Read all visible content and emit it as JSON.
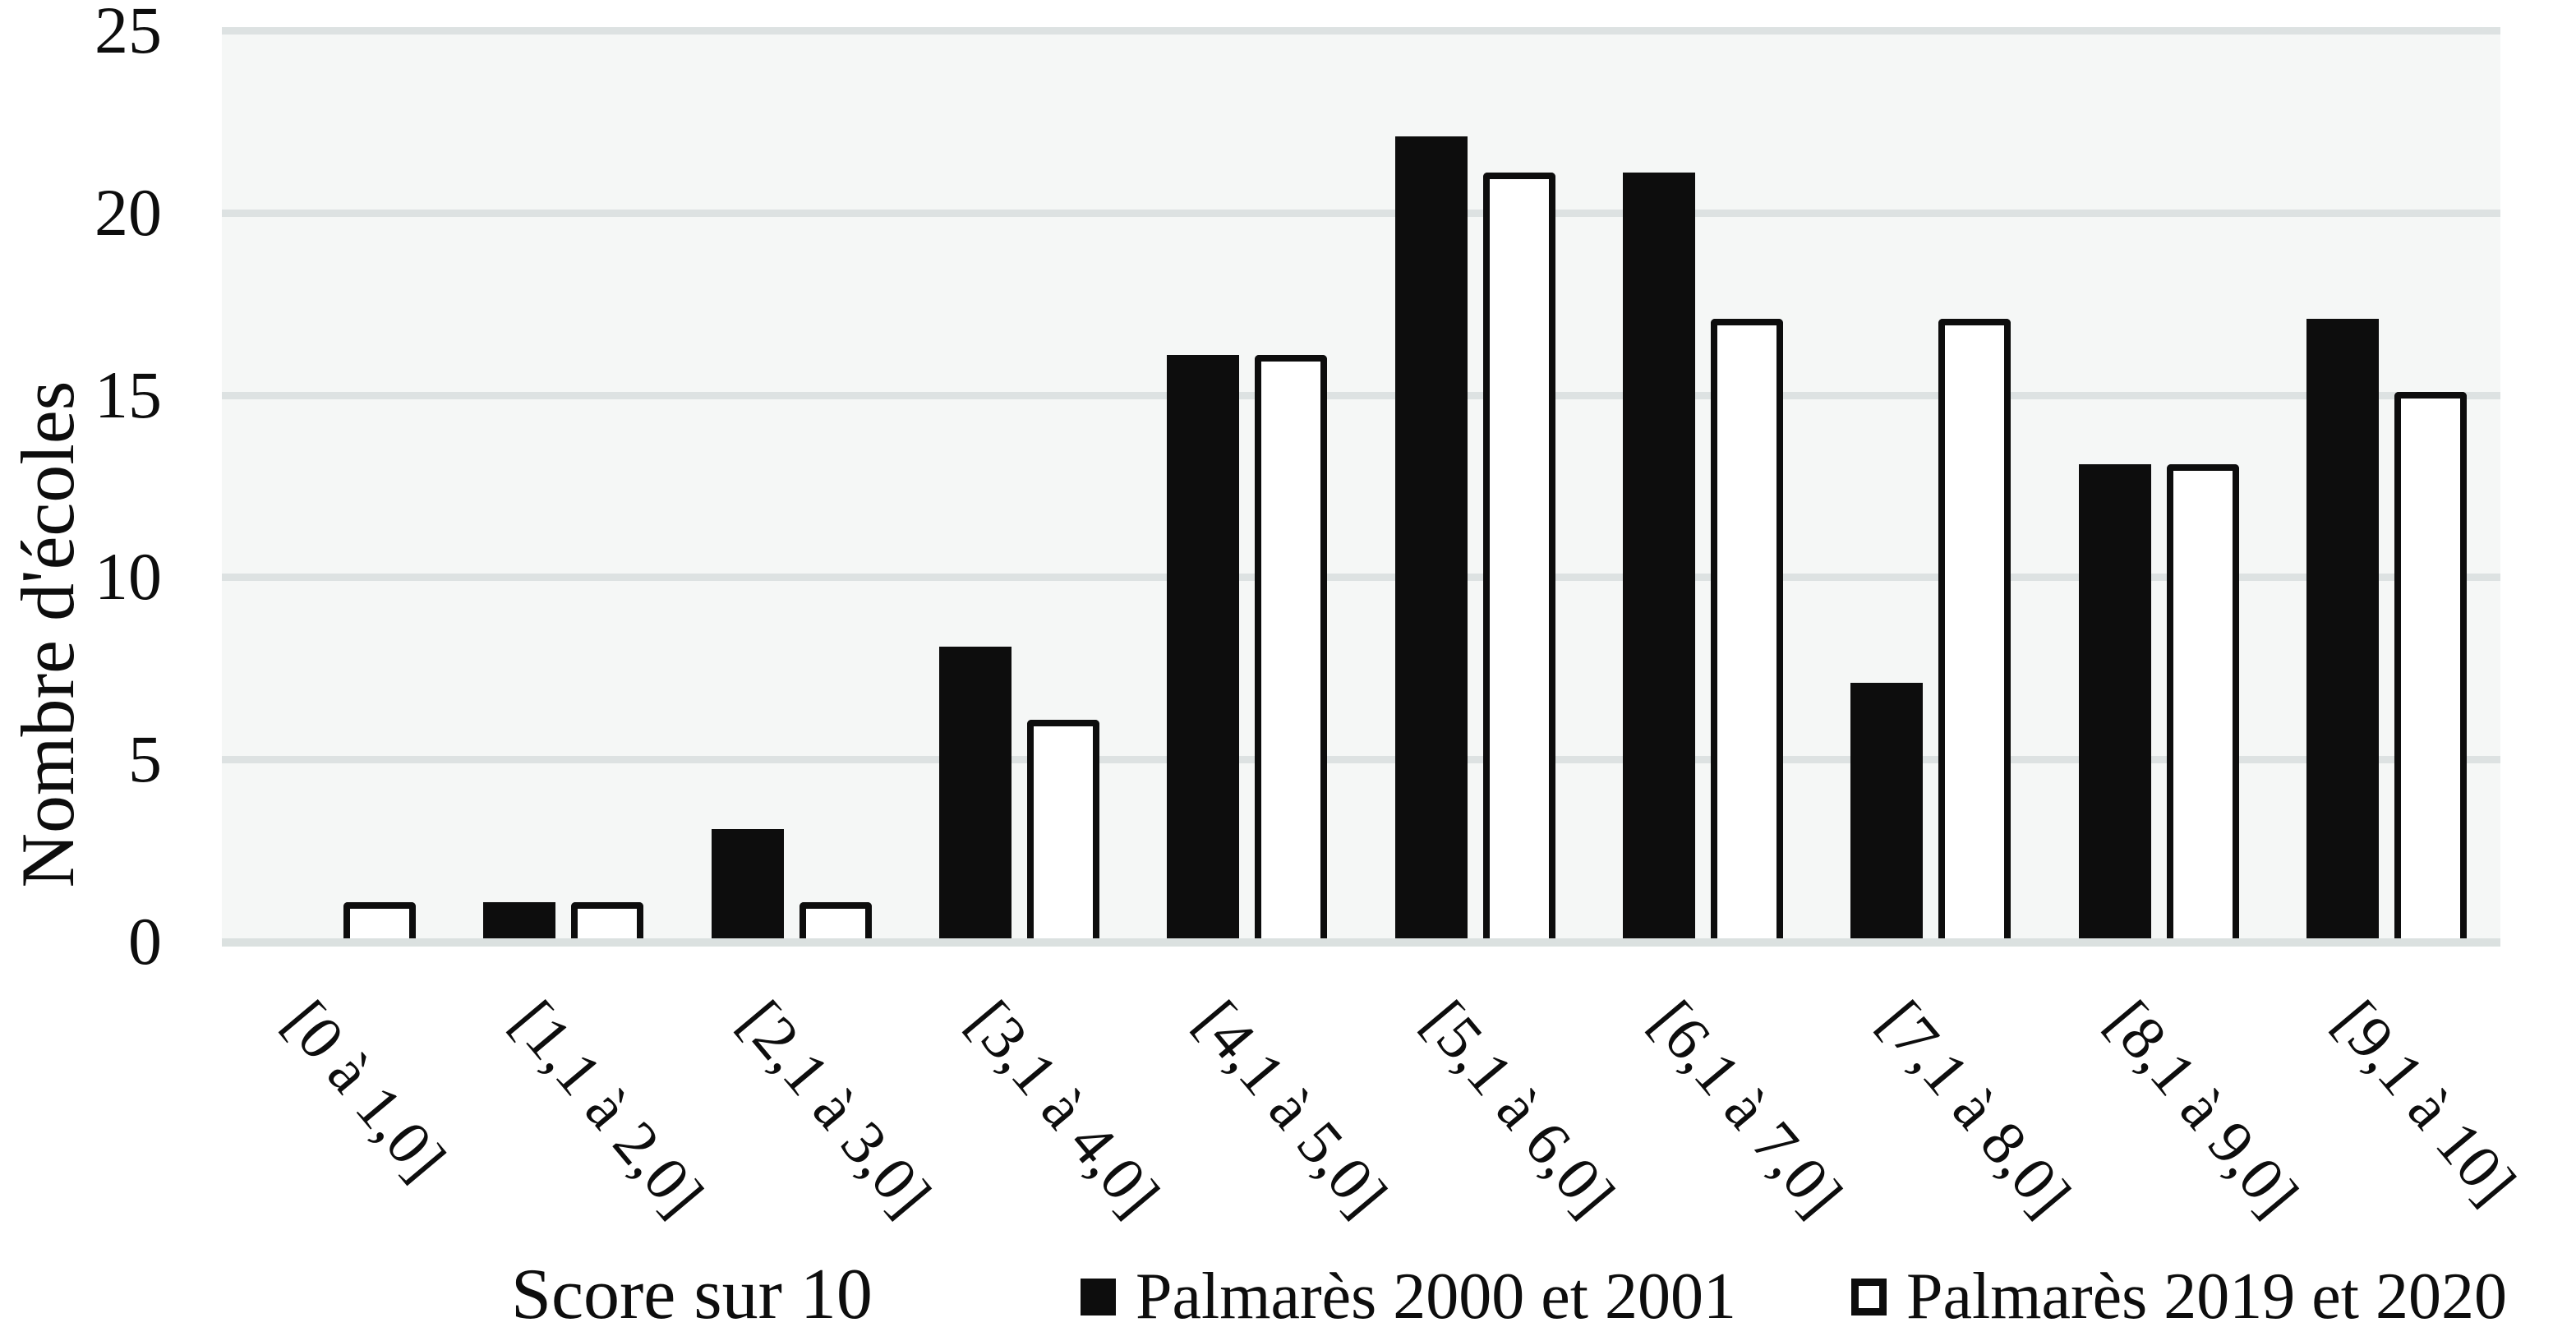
{
  "chart_data": {
    "type": "bar",
    "title": "",
    "xlabel": "Score sur 10",
    "ylabel": "Nombre d'écoles",
    "categories": [
      "[0 à 1,0]",
      "[1,1 à 2,0]",
      "[2,1 à 3,0]",
      "[3,1 à 4,0]",
      "[4,1 à 5,0]",
      "[5,1 à 6,0]",
      "[6,1 à 7,0]",
      "[7,1 à 8,0]",
      "[8,1 à 9,0]",
      "[9,1 à 10]"
    ],
    "series": [
      {
        "name": "Palmarès 2000 et 2001",
        "style": "filled",
        "values": [
          0,
          1,
          3,
          8,
          16,
          22,
          21,
          7,
          13,
          17
        ]
      },
      {
        "name": "Palmarès 2019 et 2020",
        "style": "outlined",
        "values": [
          1,
          1,
          1,
          6,
          16,
          21,
          17,
          17,
          13,
          15
        ]
      }
    ],
    "ylim": [
      0,
      25
    ],
    "yticks": [
      0,
      5,
      10,
      15,
      20,
      25
    ],
    "grid": "horizontal",
    "legend_position": "bottom",
    "colors": {
      "bar_fill": "#0d0d0d",
      "bar_outline": "#0d0d0d",
      "outlined_bar_fill": "#ffffff",
      "plot_background": "#f5f7f6",
      "gridline": "#dde2e2",
      "axis_line": "#dbe1e0",
      "text": "#0d0d0d"
    }
  }
}
